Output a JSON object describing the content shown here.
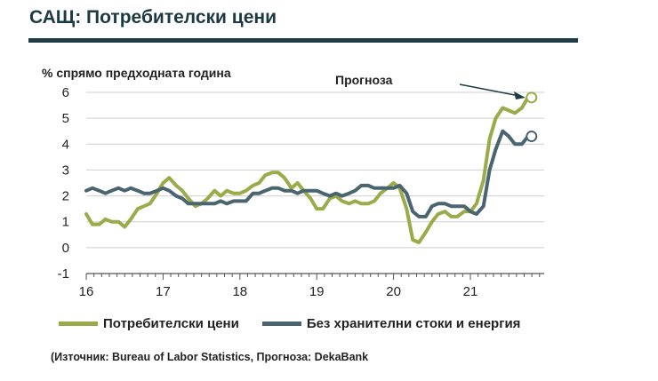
{
  "title": "САЩ: Потребителски цени",
  "source": "(Източник: Bureau of Labor Statistics, Прогноза: DekaBank",
  "chart_data": {
    "type": "line",
    "ylabel": "% спрямо предходната година",
    "ylim": [
      -1,
      6
    ],
    "yticks": [
      "-1",
      "0",
      "1",
      "2",
      "3",
      "4",
      "5",
      "6"
    ],
    "xlim": [
      2016,
      2021.8
    ],
    "xticks": [
      "16",
      "17",
      "18",
      "19",
      "20",
      "21"
    ],
    "annotation": "Прогноза",
    "series": [
      {
        "name": "Потребителски цени",
        "color": "#9aab4a",
        "values": [
          [
            2016.0,
            1.3
          ],
          [
            2016.08,
            0.9
          ],
          [
            2016.17,
            0.9
          ],
          [
            2016.25,
            1.1
          ],
          [
            2016.33,
            1.0
          ],
          [
            2016.42,
            1.0
          ],
          [
            2016.5,
            0.8
          ],
          [
            2016.58,
            1.1
          ],
          [
            2016.67,
            1.5
          ],
          [
            2016.75,
            1.6
          ],
          [
            2016.83,
            1.7
          ],
          [
            2016.92,
            2.1
          ],
          [
            2017.0,
            2.5
          ],
          [
            2017.08,
            2.7
          ],
          [
            2017.17,
            2.4
          ],
          [
            2017.25,
            2.2
          ],
          [
            2017.33,
            1.9
          ],
          [
            2017.42,
            1.6
          ],
          [
            2017.5,
            1.7
          ],
          [
            2017.58,
            1.9
          ],
          [
            2017.67,
            2.2
          ],
          [
            2017.75,
            2.0
          ],
          [
            2017.83,
            2.2
          ],
          [
            2017.92,
            2.1
          ],
          [
            2018.0,
            2.1
          ],
          [
            2018.08,
            2.2
          ],
          [
            2018.17,
            2.4
          ],
          [
            2018.25,
            2.5
          ],
          [
            2018.33,
            2.8
          ],
          [
            2018.42,
            2.9
          ],
          [
            2018.5,
            2.9
          ],
          [
            2018.58,
            2.7
          ],
          [
            2018.67,
            2.3
          ],
          [
            2018.75,
            2.5
          ],
          [
            2018.83,
            2.2
          ],
          [
            2018.92,
            1.9
          ],
          [
            2019.0,
            1.5
          ],
          [
            2019.08,
            1.5
          ],
          [
            2019.17,
            1.9
          ],
          [
            2019.25,
            2.0
          ],
          [
            2019.33,
            1.8
          ],
          [
            2019.42,
            1.7
          ],
          [
            2019.5,
            1.8
          ],
          [
            2019.58,
            1.7
          ],
          [
            2019.67,
            1.7
          ],
          [
            2019.75,
            1.8
          ],
          [
            2019.83,
            2.1
          ],
          [
            2019.92,
            2.3
          ],
          [
            2020.0,
            2.5
          ],
          [
            2020.08,
            2.3
          ],
          [
            2020.17,
            1.5
          ],
          [
            2020.25,
            0.3
          ],
          [
            2020.33,
            0.2
          ],
          [
            2020.42,
            0.6
          ],
          [
            2020.5,
            1.0
          ],
          [
            2020.58,
            1.3
          ],
          [
            2020.67,
            1.4
          ],
          [
            2020.75,
            1.2
          ],
          [
            2020.83,
            1.2
          ],
          [
            2020.92,
            1.4
          ],
          [
            2021.0,
            1.4
          ],
          [
            2021.08,
            1.7
          ],
          [
            2021.17,
            2.6
          ],
          [
            2021.25,
            4.2
          ],
          [
            2021.33,
            5.0
          ],
          [
            2021.42,
            5.4
          ],
          [
            2021.5,
            5.3
          ],
          [
            2021.58,
            5.2
          ],
          [
            2021.67,
            5.4
          ],
          [
            2021.75,
            5.8
          ]
        ],
        "forecast_point": [
          2021.75,
          5.8
        ]
      },
      {
        "name": "Без хранителни стоки и енергия",
        "color": "#4a6470",
        "values": [
          [
            2016.0,
            2.2
          ],
          [
            2016.08,
            2.3
          ],
          [
            2016.17,
            2.2
          ],
          [
            2016.25,
            2.1
          ],
          [
            2016.33,
            2.2
          ],
          [
            2016.42,
            2.3
          ],
          [
            2016.5,
            2.2
          ],
          [
            2016.58,
            2.3
          ],
          [
            2016.67,
            2.2
          ],
          [
            2016.75,
            2.1
          ],
          [
            2016.83,
            2.1
          ],
          [
            2016.92,
            2.2
          ],
          [
            2017.0,
            2.3
          ],
          [
            2017.08,
            2.2
          ],
          [
            2017.17,
            2.0
          ],
          [
            2017.25,
            1.9
          ],
          [
            2017.33,
            1.7
          ],
          [
            2017.42,
            1.7
          ],
          [
            2017.5,
            1.7
          ],
          [
            2017.58,
            1.7
          ],
          [
            2017.67,
            1.7
          ],
          [
            2017.75,
            1.8
          ],
          [
            2017.83,
            1.7
          ],
          [
            2017.92,
            1.8
          ],
          [
            2018.0,
            1.8
          ],
          [
            2018.08,
            1.8
          ],
          [
            2018.17,
            2.1
          ],
          [
            2018.25,
            2.1
          ],
          [
            2018.33,
            2.2
          ],
          [
            2018.42,
            2.3
          ],
          [
            2018.5,
            2.3
          ],
          [
            2018.58,
            2.2
          ],
          [
            2018.67,
            2.2
          ],
          [
            2018.75,
            2.1
          ],
          [
            2018.83,
            2.2
          ],
          [
            2018.92,
            2.2
          ],
          [
            2019.0,
            2.2
          ],
          [
            2019.08,
            2.1
          ],
          [
            2019.17,
            2.0
          ],
          [
            2019.25,
            2.1
          ],
          [
            2019.33,
            2.0
          ],
          [
            2019.42,
            2.1
          ],
          [
            2019.5,
            2.2
          ],
          [
            2019.58,
            2.4
          ],
          [
            2019.67,
            2.4
          ],
          [
            2019.75,
            2.3
          ],
          [
            2019.83,
            2.3
          ],
          [
            2019.92,
            2.3
          ],
          [
            2020.0,
            2.3
          ],
          [
            2020.08,
            2.4
          ],
          [
            2020.17,
            2.1
          ],
          [
            2020.25,
            1.4
          ],
          [
            2020.33,
            1.2
          ],
          [
            2020.42,
            1.2
          ],
          [
            2020.5,
            1.6
          ],
          [
            2020.58,
            1.7
          ],
          [
            2020.67,
            1.7
          ],
          [
            2020.75,
            1.6
          ],
          [
            2020.83,
            1.6
          ],
          [
            2020.92,
            1.6
          ],
          [
            2021.0,
            1.4
          ],
          [
            2021.08,
            1.3
          ],
          [
            2021.17,
            1.6
          ],
          [
            2021.25,
            3.0
          ],
          [
            2021.33,
            3.8
          ],
          [
            2021.42,
            4.5
          ],
          [
            2021.5,
            4.3
          ],
          [
            2021.58,
            4.0
          ],
          [
            2021.67,
            4.0
          ],
          [
            2021.75,
            4.3
          ]
        ],
        "forecast_point": [
          2021.75,
          4.3
        ]
      }
    ]
  }
}
